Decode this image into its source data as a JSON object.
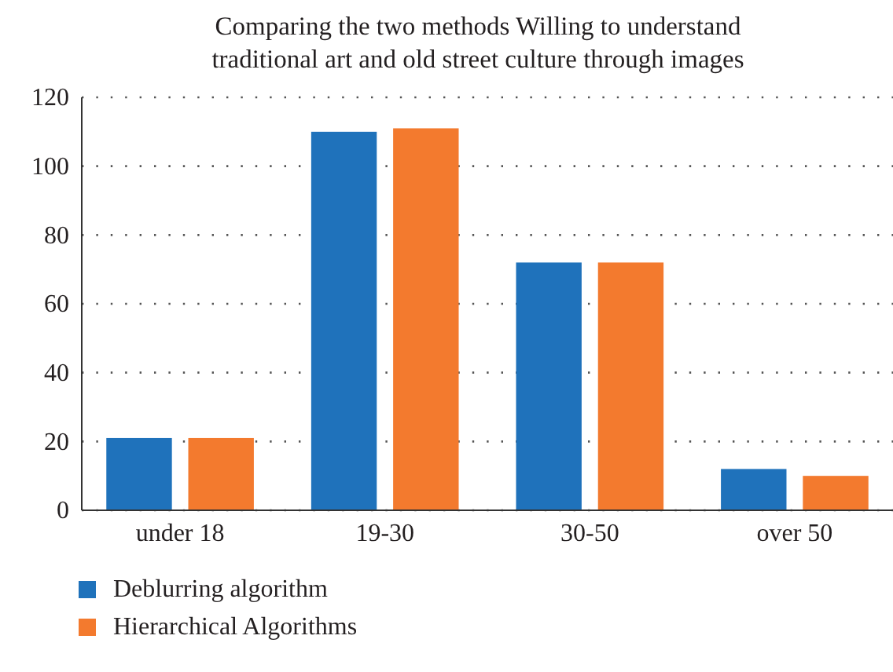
{
  "chart_data": {
    "type": "bar",
    "title": "Comparing the two methods Willing to understand traditional art and old street culture through images",
    "categories": [
      "under 18",
      "19-30",
      "30-50",
      "over 50"
    ],
    "series": [
      {
        "name": "Deblurring algorithm",
        "color": "#1f72bb",
        "values": [
          21,
          110,
          72,
          12
        ]
      },
      {
        "name": "Hierarchical Algorithms",
        "color": "#f37a2e",
        "values": [
          21,
          111,
          72,
          10
        ]
      }
    ],
    "ylim": [
      0,
      120
    ],
    "yticks": [
      0,
      20,
      40,
      60,
      80,
      100,
      120
    ],
    "grid": "y",
    "legend": "bottom left"
  }
}
